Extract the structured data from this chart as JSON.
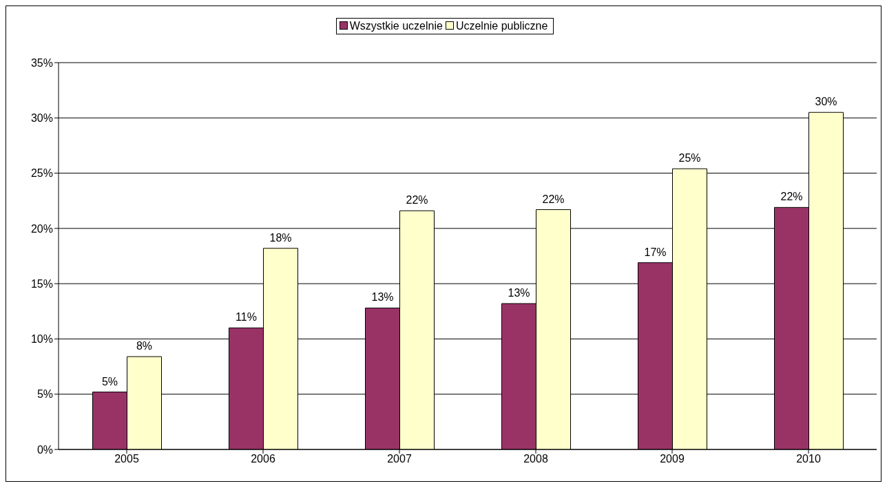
{
  "chart_data": {
    "type": "bar",
    "categories": [
      "2005",
      "2006",
      "2007",
      "2008",
      "2009",
      "2010"
    ],
    "series": [
      {
        "name": "Wszystkie uczelnie",
        "color": "#993366",
        "values": [
          5.2,
          11.0,
          12.8,
          13.2,
          16.9,
          21.9
        ],
        "value_labels": [
          "5%",
          "11%",
          "13%",
          "13%",
          "17%",
          "22%"
        ]
      },
      {
        "name": "Uczelnie publiczne",
        "color": "#ffffcc",
        "values": [
          8.4,
          18.2,
          21.6,
          21.7,
          25.4,
          30.5
        ],
        "value_labels": [
          "8%",
          "18%",
          "22%",
          "22%",
          "25%",
          "30%"
        ]
      }
    ],
    "ylim": [
      0,
      35
    ],
    "yticks": [
      {
        "value": 0,
        "label": "0%"
      },
      {
        "value": 5,
        "label": "5%"
      },
      {
        "value": 10,
        "label": "10%"
      },
      {
        "value": 15,
        "label": "15%"
      },
      {
        "value": 20,
        "label": "20%"
      },
      {
        "value": 25,
        "label": "25%"
      },
      {
        "value": 30,
        "label": "30%"
      },
      {
        "value": 35,
        "label": "35%"
      }
    ],
    "grid": "y",
    "legend": "top"
  }
}
